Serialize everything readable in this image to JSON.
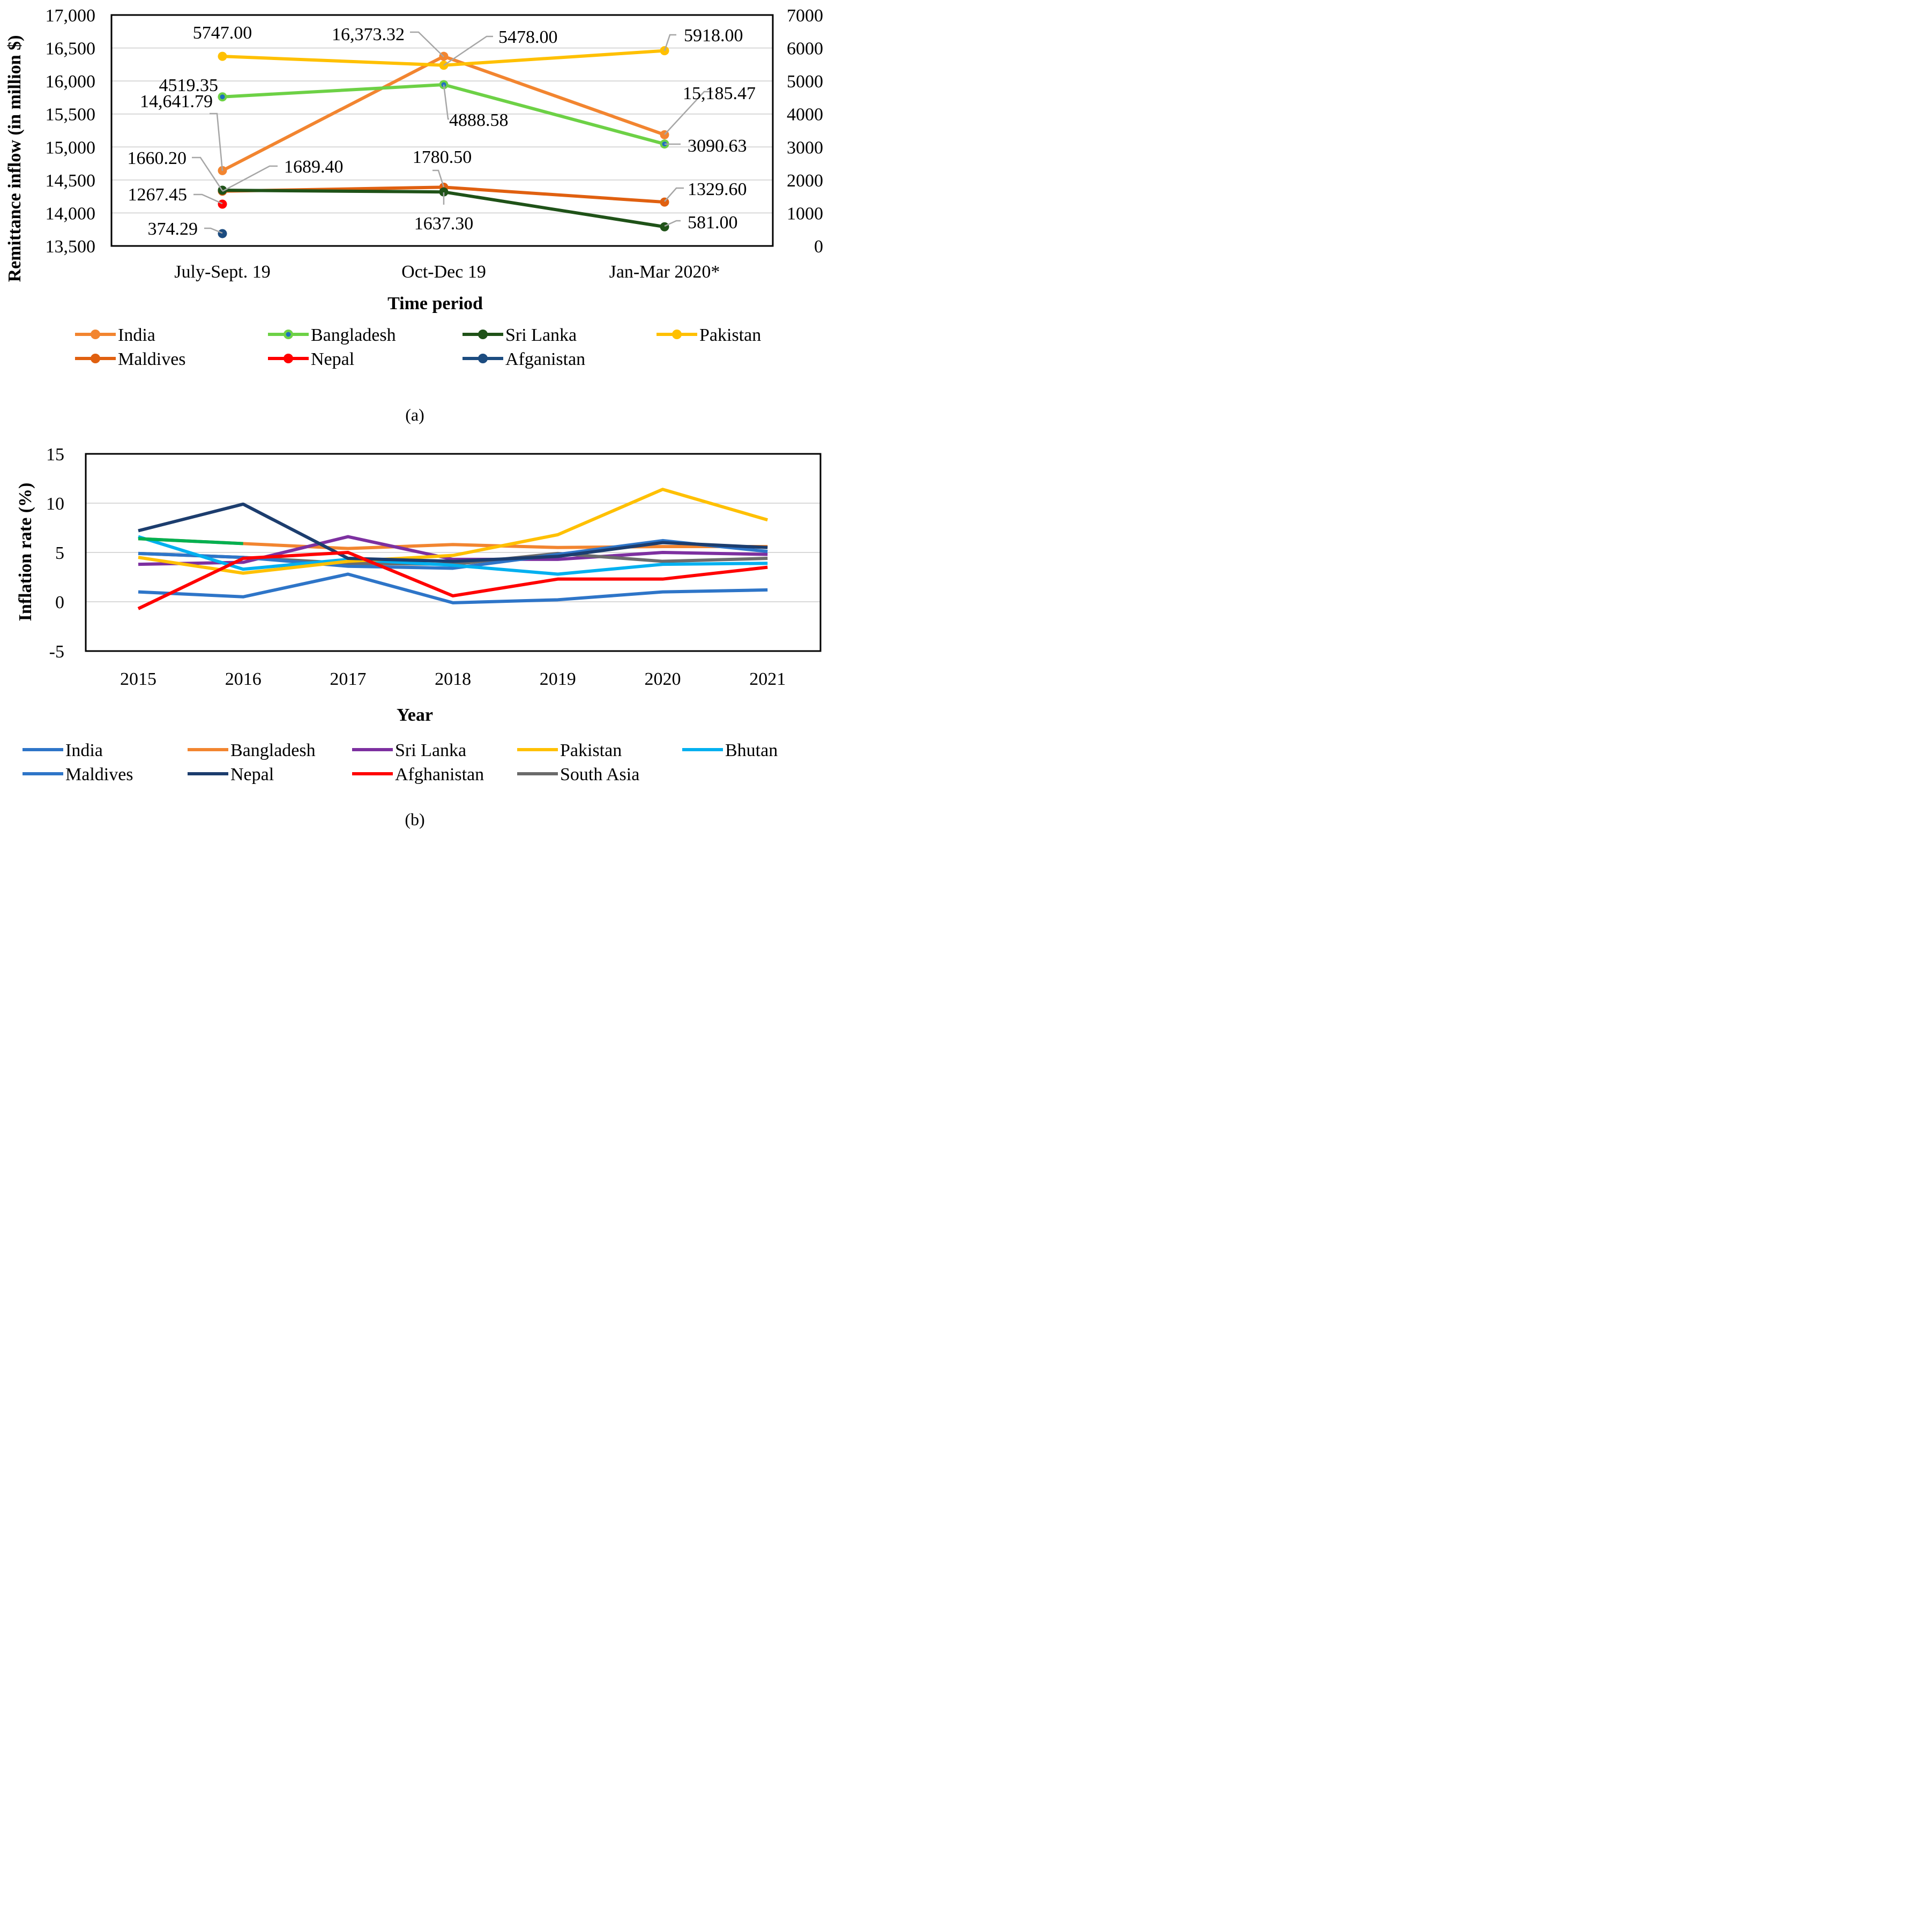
{
  "colors": {
    "india": "#f28530",
    "bangladesh": "#6dd146",
    "srilanka": "#1f5218",
    "pakistan": "#ffc000",
    "maldives": "#e06010",
    "nepal": "#ff0000",
    "afganistan": "#1c4c80",
    "dot_inner": "#1f6fbf",
    "grid": "#d9d9d9",
    "leader": "#a6a6a6",
    "b_india": "#2e75c8",
    "b_bangladesh": "#f28530",
    "b_srilanka": "#7d30a0",
    "b_pakistan": "#ffc000",
    "b_bhutan": "#00b0f0",
    "b_maldives": "#2e75c8",
    "b_nepal": "#1c3d6e",
    "b_afghanistan": "#ff0000",
    "b_southasia": "#6b6b6b",
    "b_green": "#00b050"
  },
  "chart_data": [
    {
      "id": "a",
      "panel_label": "(a)",
      "type": "line",
      "xlabel": "Time period",
      "ylabel": "Remittance inflow (in million $)",
      "categories": [
        "July-Sept. 19",
        "Oct-Dec 19",
        "Jan-Mar 2020*"
      ],
      "y_left": {
        "min": 13500,
        "max": 17000,
        "step": 500,
        "ticks": [
          "13,500",
          "14,000",
          "14,500",
          "15,000",
          "15,500",
          "16,000",
          "16,500",
          "17,000"
        ]
      },
      "y_right": {
        "min": 0,
        "max": 7000,
        "step": 1000,
        "ticks": [
          "0",
          "1000",
          "2000",
          "3000",
          "4000",
          "5000",
          "6000",
          "7000"
        ]
      },
      "series": [
        {
          "key": "india",
          "name": "India",
          "axis": "left",
          "values": [
            14641.79,
            16373.32,
            15185.47
          ],
          "labels": [
            "14,641.79",
            "16,373.32",
            "15,185.47"
          ]
        },
        {
          "key": "bangladesh",
          "name": "Bangladesh",
          "axis": "right",
          "values": [
            4519.35,
            4888.58,
            3090.63
          ],
          "labels": [
            "4519.35",
            "4888.58",
            "3090.63"
          ]
        },
        {
          "key": "srilanka",
          "name": "Sri Lanka",
          "axis": "right",
          "values": [
            1689.4,
            1637.3,
            581.0
          ],
          "labels": [
            "1689.40",
            "1637.30",
            "581.00"
          ]
        },
        {
          "key": "pakistan",
          "name": "Pakistan",
          "axis": "right",
          "values": [
            5747.0,
            5478.0,
            5918.0
          ],
          "labels": [
            "5747.00",
            "5478.00",
            "5918.00"
          ]
        },
        {
          "key": "maldives",
          "name": "Maldives",
          "axis": "right",
          "values": [
            1660.2,
            1780.5,
            1329.6
          ],
          "labels": [
            "1660.20",
            "1780.50",
            "1329.60"
          ]
        },
        {
          "key": "nepal",
          "name": "Nepal",
          "axis": "right",
          "values": [
            1267.45,
            null,
            null
          ],
          "labels": [
            "1267.45",
            "",
            ""
          ]
        },
        {
          "key": "afganistan",
          "name": "Afganistan",
          "axis": "right",
          "values": [
            374.29,
            null,
            null
          ],
          "labels": [
            "374.29",
            "",
            ""
          ]
        }
      ]
    },
    {
      "id": "b",
      "panel_label": "(b)",
      "type": "line",
      "xlabel": "Year",
      "ylabel": "Inflation rate (%)",
      "categories": [
        "2015",
        "2016",
        "2017",
        "2018",
        "2019",
        "2020",
        "2021"
      ],
      "y": {
        "min": -5,
        "max": 15,
        "step": 5,
        "ticks": [
          "-5",
          "0",
          "5",
          "10",
          "15"
        ]
      },
      "series": [
        {
          "key": "b_india",
          "name": "India",
          "values": [
            4.9,
            4.5,
            3.6,
            3.4,
            4.8,
            6.2,
            5.1
          ]
        },
        {
          "key": "b_bangladesh",
          "name": "Bangladesh",
          "values": [
            6.4,
            5.9,
            5.4,
            5.8,
            5.5,
            5.6,
            5.6
          ]
        },
        {
          "key": "b_srilanka",
          "name": "Sri Lanka",
          "values": [
            3.8,
            4.0,
            6.6,
            4.3,
            4.3,
            5.0,
            4.8
          ]
        },
        {
          "key": "b_pakistan",
          "name": "Pakistan",
          "values": [
            4.5,
            2.9,
            4.1,
            4.7,
            6.8,
            11.4,
            8.3
          ]
        },
        {
          "key": "b_bhutan",
          "name": "Bhutan",
          "values": [
            6.6,
            3.3,
            4.3,
            3.7,
            2.8,
            3.8,
            3.9
          ]
        },
        {
          "key": "b_maldives",
          "name": "Maldives",
          "values": [
            1.0,
            0.5,
            2.8,
            -0.1,
            0.2,
            1.0,
            1.2
          ]
        },
        {
          "key": "b_nepal",
          "name": "Nepal",
          "values": [
            7.2,
            9.9,
            4.4,
            4.1,
            4.6,
            6.0,
            5.5
          ]
        },
        {
          "key": "b_afghanistan",
          "name": "Afghanistan",
          "values": [
            -0.7,
            4.4,
            5.0,
            0.6,
            2.3,
            2.3,
            3.5
          ]
        },
        {
          "key": "b_southasia",
          "name": "South Asia",
          "values": [
            4.9,
            4.5,
            3.9,
            3.8,
            4.9,
            4.1,
            4.4
          ]
        }
      ]
    }
  ]
}
